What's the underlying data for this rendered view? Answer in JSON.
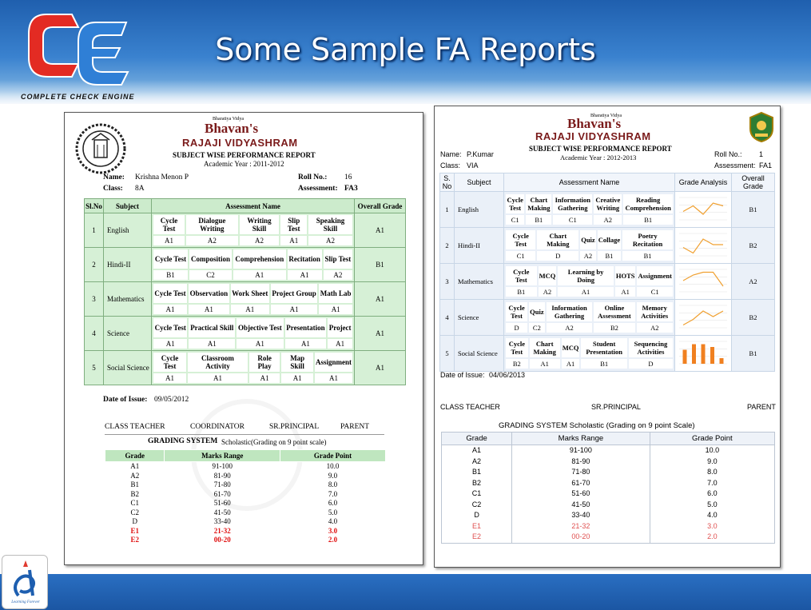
{
  "slide": {
    "title": "Some Sample FA Reports",
    "logo_caption": "COMPLETE CHECK ENGINE",
    "footer_logo_caption": "Learning Forever"
  },
  "report1": {
    "emblem_text": "BHARATIYA VIDYA BHAVAN",
    "school_small": "Bharatiya Vidya",
    "school_brand": "Bhavan's",
    "school_name": "RAJAJI VIDYASHRAM",
    "report_title": "SUBJECT WISE PERFORMANCE REPORT",
    "academic_year": "Academic Year : 2011-2012",
    "name_label": "Name:",
    "name_value": "Krishna Menon P",
    "class_label": "Class:",
    "class_value": "8A",
    "roll_label": "Roll No.:",
    "roll_value": "16",
    "assessment_label": "Assessment:",
    "assessment_value": "FA3",
    "headers": [
      "Sl.No",
      "Subject",
      "Assessment Name",
      "Overall Grade"
    ],
    "subjects": [
      {
        "no": "1",
        "subject": "English",
        "items": [
          [
            "Cycle Test",
            "A1"
          ],
          [
            "Dialogue Writing",
            "A2"
          ],
          [
            "Writing Skill",
            "A2"
          ],
          [
            "Slip Test",
            "A1"
          ],
          [
            "Speaking Skill",
            "A2"
          ]
        ],
        "overall": "A1"
      },
      {
        "no": "2",
        "subject": "Hindi-II",
        "items": [
          [
            "Cycle Test",
            "B1"
          ],
          [
            "Composition",
            "C2"
          ],
          [
            "Comprehension",
            "A1"
          ],
          [
            "Recitation",
            "A1"
          ],
          [
            "Slip Test",
            "A2"
          ]
        ],
        "overall": "B1"
      },
      {
        "no": "3",
        "subject": "Mathematics",
        "items": [
          [
            "Cycle Test",
            "A1"
          ],
          [
            "Observation",
            "A1"
          ],
          [
            "Work Sheet",
            "A1"
          ],
          [
            "Project Group",
            "A1"
          ],
          [
            "Math Lab",
            "A1"
          ]
        ],
        "overall": "A1"
      },
      {
        "no": "4",
        "subject": "Science",
        "items": [
          [
            "Cycle Test",
            "A1"
          ],
          [
            "Practical Skill",
            "A1"
          ],
          [
            "Objective Test",
            "A1"
          ],
          [
            "Presentation",
            "A1"
          ],
          [
            "Project",
            "A1"
          ]
        ],
        "overall": "A1"
      },
      {
        "no": "5",
        "subject": "Social Science",
        "items": [
          [
            "Cycle Test",
            "A1"
          ],
          [
            "Classroom Activity",
            "A1"
          ],
          [
            "Role Play",
            "A1"
          ],
          [
            "Map Skill",
            "A1"
          ],
          [
            "Assignment",
            "A1"
          ]
        ],
        "overall": "A1"
      }
    ],
    "date_label": "Date of Issue:",
    "date_value": "09/05/2012",
    "signatures": [
      "CLASS TEACHER",
      "COORDINATOR",
      "SR.PRINCIPAL",
      "PARENT"
    ],
    "grading_title": "GRADING SYSTEM",
    "grading_subtitle": "Scholastic(Grading on 9 point scale)",
    "grading_headers": [
      "Grade",
      "Marks Range",
      "Grade Point"
    ],
    "grading_rows": [
      [
        "A1",
        "91-100",
        "10.0"
      ],
      [
        "A2",
        "81-90",
        "9.0"
      ],
      [
        "B1",
        "71-80",
        "8.0"
      ],
      [
        "B2",
        "61-70",
        "7.0"
      ],
      [
        "C1",
        "51-60",
        "6.0"
      ],
      [
        "C2",
        "41-50",
        "5.0"
      ],
      [
        "D",
        "33-40",
        "4.0"
      ],
      [
        "E1",
        "21-32",
        "3.0"
      ],
      [
        "E2",
        "00-20",
        "2.0"
      ]
    ]
  },
  "report2": {
    "school_small": "Bharatiya Vidya",
    "school_brand": "Bhavan's",
    "school_name": "RAJAJI VIDYASHRAM",
    "report_title": "SUBJECT WISE PERFORMANCE REPORT",
    "academic_year": "Academic Year : 2012-2013",
    "name_label": "Name:",
    "name_value": "P.Kumar",
    "class_label": "Class:",
    "class_value": "VIA",
    "roll_label": "Roll No.:",
    "roll_value": "1",
    "assessment_label": "Assessment:",
    "assessment_value": "FA1",
    "headers": [
      "S. No",
      "Subject",
      "Assessment Name",
      "Grade Analysis",
      "Overall Grade"
    ],
    "subjects": [
      {
        "no": "1",
        "subject": "English",
        "items": [
          [
            "Cycle Test",
            "C1"
          ],
          [
            "Chart Making",
            "B1"
          ],
          [
            "Information Gathering",
            "C1"
          ],
          [
            "Creative Writing",
            "A2"
          ],
          [
            "Reading Comprehension",
            "B1"
          ]
        ],
        "overall": "B1"
      },
      {
        "no": "2",
        "subject": "Hindi-II",
        "items": [
          [
            "Cycle Test",
            "C1"
          ],
          [
            "Chart Making",
            "D"
          ],
          [
            "Quiz",
            "A2"
          ],
          [
            "Collage",
            "B1"
          ],
          [
            "Poetry Recitation",
            "B1"
          ]
        ],
        "overall": "B2"
      },
      {
        "no": "3",
        "subject": "Mathematics",
        "items": [
          [
            "Cycle Test",
            "B1"
          ],
          [
            "MCQ",
            "A2"
          ],
          [
            "Learning by Doing",
            "A1"
          ],
          [
            "HOTS",
            "A1"
          ],
          [
            "Assignment",
            "C1"
          ]
        ],
        "overall": "A2"
      },
      {
        "no": "4",
        "subject": "Science",
        "items": [
          [
            "Cycle Test",
            "D"
          ],
          [
            "Quiz",
            "C2"
          ],
          [
            "Information Gathering",
            "A2"
          ],
          [
            "Online Assessment",
            "B2"
          ],
          [
            "Memory Activities",
            "A2"
          ]
        ],
        "overall": "B2"
      },
      {
        "no": "5",
        "subject": "Social Science",
        "items": [
          [
            "Cycle Test",
            "B2"
          ],
          [
            "Chart Making",
            "A1"
          ],
          [
            "MCQ",
            "A1"
          ],
          [
            "Student Presentation",
            "B1"
          ],
          [
            "Sequencing Activities",
            "D"
          ]
        ],
        "overall": "B1"
      }
    ],
    "date_label": "Date of Issue:",
    "date_value": "04/06/2013",
    "signatures": [
      "CLASS TEACHER",
      "SR.PRINCIPAL",
      "PARENT"
    ],
    "grading_title": "GRADING SYSTEM Scholastic (Grading on 9 point Scale)",
    "grading_headers": [
      "Grade",
      "Marks Range",
      "Grade Point"
    ],
    "grading_rows": [
      [
        "A1",
        "91-100",
        "10.0"
      ],
      [
        "A2",
        "81-90",
        "9.0"
      ],
      [
        "B1",
        "71-80",
        "8.0"
      ],
      [
        "B2",
        "61-70",
        "7.0"
      ],
      [
        "C1",
        "51-60",
        "6.0"
      ],
      [
        "C2",
        "41-50",
        "5.0"
      ],
      [
        "D",
        "33-40",
        "4.0"
      ],
      [
        "E1",
        "21-32",
        "3.0"
      ],
      [
        "E2",
        "00-20",
        "2.0"
      ]
    ],
    "sparklines": [
      {
        "type": "line",
        "values": [
          3,
          5,
          2,
          6,
          5
        ]
      },
      {
        "type": "line",
        "values": [
          3,
          1,
          6,
          4,
          4
        ]
      },
      {
        "type": "line",
        "values": [
          4,
          6,
          7,
          7,
          2
        ]
      },
      {
        "type": "line",
        "values": [
          1,
          3,
          6,
          4,
          6
        ]
      },
      {
        "type": "bar",
        "values": [
          5,
          7,
          7,
          6,
          2
        ]
      }
    ],
    "accent_line": "#f0a030",
    "accent_bar": "#f08020"
  }
}
